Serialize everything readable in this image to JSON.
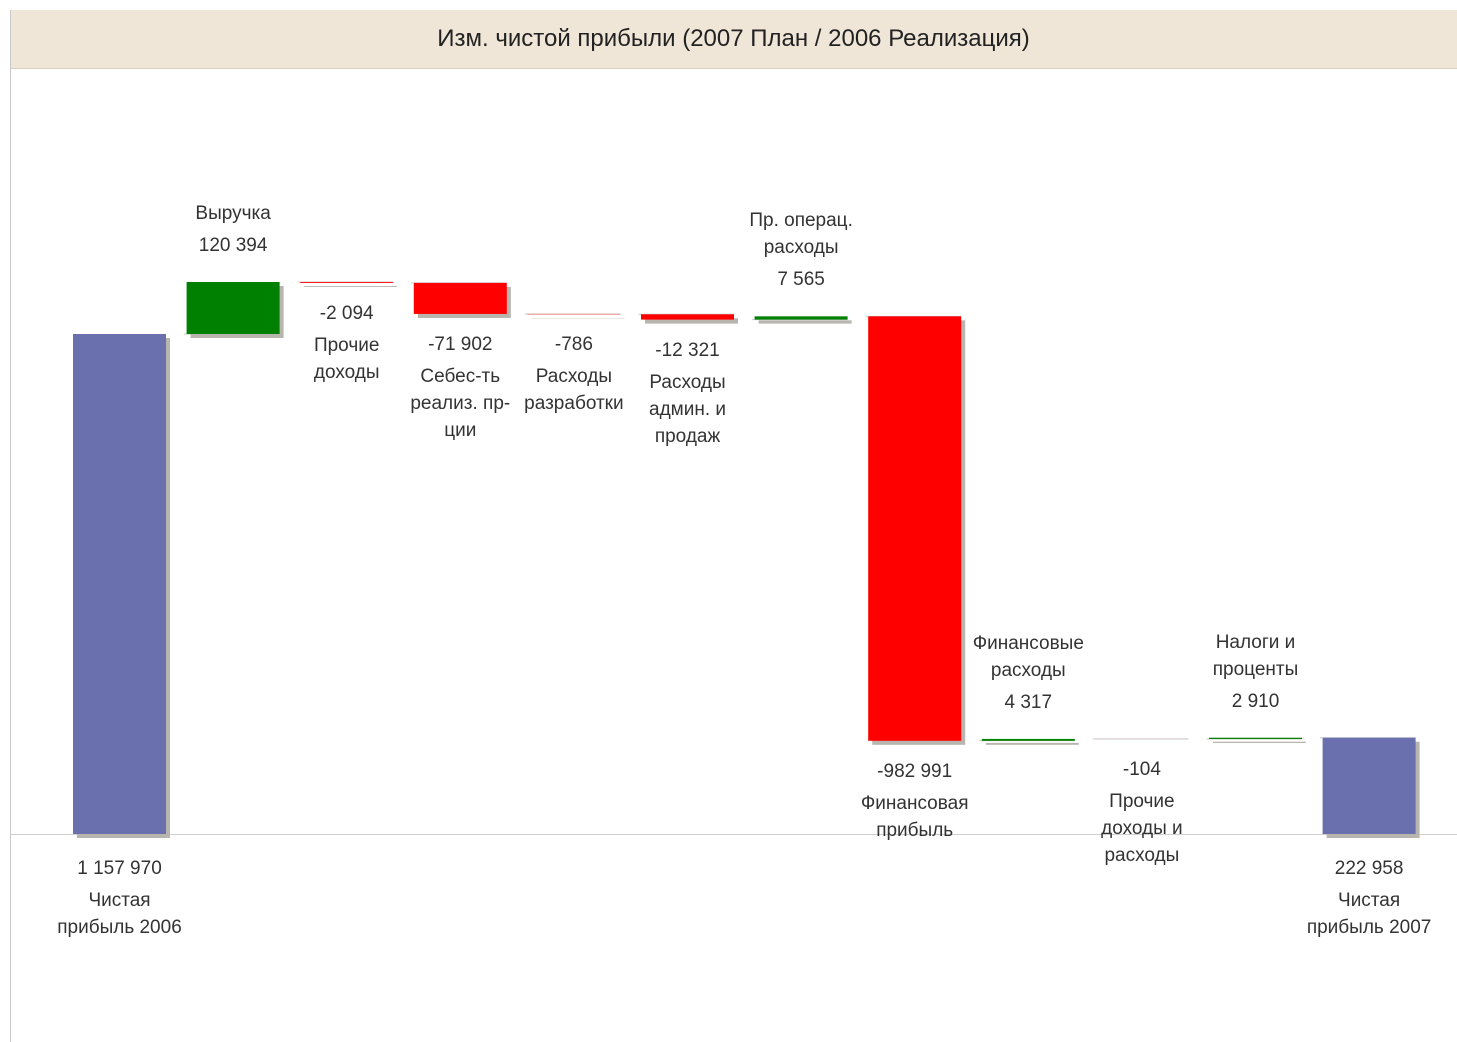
{
  "chart_data": {
    "type": "waterfall",
    "title": "Изм. чистой прибыли (2007 План / 2006 Реализация)",
    "categories": [
      "Чистая прибыль 2006",
      "Выручка",
      "Прочие доходы",
      "Себес-ть реализ. пр-ции",
      "Расходы разработки",
      "Расходы админ. и продаж",
      "Пр. операц. расходы",
      "Финансовая прибыль",
      "Финансовые расходы",
      "Прочие доходы и расходы",
      "Налоги и проценты",
      "Чистая прибыль 2007"
    ],
    "values": [
      1157970,
      120394,
      -2094,
      -71902,
      -786,
      -12321,
      7565,
      -982991,
      4317,
      -104,
      2910,
      222958
    ],
    "value_labels": [
      "1 157 970",
      "120 394",
      "-2 094",
      "-71 902",
      "-786",
      "-12 321",
      "7 565",
      "-982 991",
      "4 317",
      "-104",
      "2 910",
      "222 958"
    ],
    "is_total": [
      true,
      false,
      false,
      false,
      false,
      false,
      false,
      false,
      false,
      false,
      false,
      true
    ],
    "colors": {
      "total": "#6a6fae",
      "increase": "#008000",
      "decrease": "#ff0000"
    }
  }
}
